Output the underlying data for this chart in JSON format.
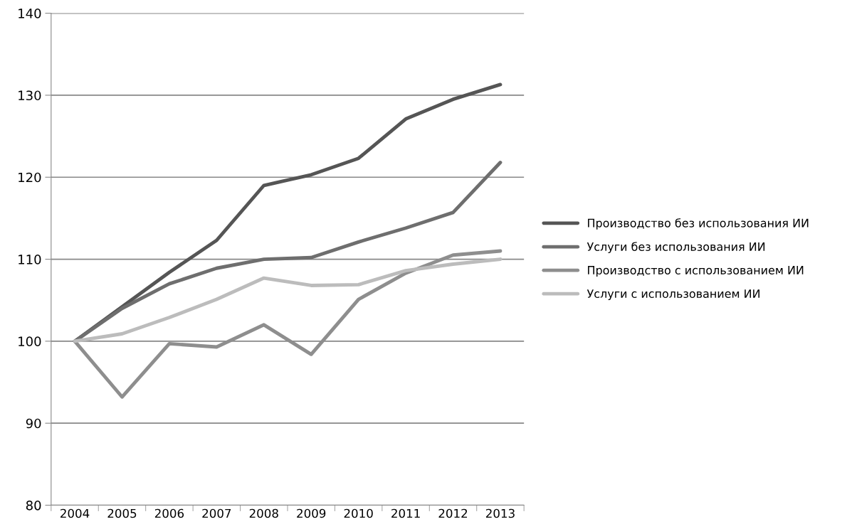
{
  "chart_data": {
    "type": "line",
    "categories": [
      "2004",
      "2005",
      "2006",
      "2007",
      "2008",
      "2009",
      "2010",
      "2011",
      "2012",
      "2013"
    ],
    "series": [
      {
        "name": "Производство без использования ИИ",
        "color": "#555555",
        "values": [
          100,
          104.2,
          108.4,
          112.3,
          119,
          120.3,
          122.3,
          127.1,
          129.5,
          131.3
        ]
      },
      {
        "name": "Услуги без использования ИИ",
        "color": "#6e6e6e",
        "values": [
          100,
          104,
          107,
          108.9,
          110,
          110.2,
          112.1,
          113.8,
          115.7,
          121.8
        ]
      },
      {
        "name": "Производство с использованием ИИ",
        "color": "#8e8e8e",
        "values": [
          100,
          93.2,
          99.7,
          99.3,
          102,
          98.4,
          105.1,
          108.3,
          110.5,
          111
        ]
      },
      {
        "name": "Услуги с использованием ИИ",
        "color": "#bcbcbc",
        "values": [
          100,
          100.9,
          102.9,
          105.1,
          107.7,
          106.8,
          106.9,
          108.6,
          109.4,
          110
        ]
      }
    ],
    "ylim": [
      80,
      140
    ],
    "yticks": [
      80,
      90,
      100,
      110,
      120,
      130,
      140
    ],
    "grid": "y",
    "legend": "right",
    "marker": "none",
    "line_style": "solid"
  }
}
